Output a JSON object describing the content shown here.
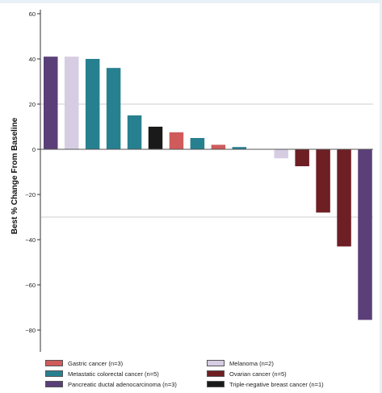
{
  "chart_data": {
    "type": "bar",
    "title": "",
    "xlabel": "",
    "ylabel": "Best % Change From Baseline",
    "ylim": [
      -90,
      63
    ],
    "yticks": [
      60,
      40,
      20,
      0,
      -20,
      -40,
      -60,
      -80
    ],
    "ytick_labels": [
      "60",
      "40",
      "20",
      "0",
      "−20",
      "−40",
      "−60",
      "−80"
    ],
    "reference_lines": [
      20,
      -30
    ],
    "grid": false,
    "legend_position": "bottom",
    "categories_legend": [
      {
        "name": "Gastric cancer (n=3)",
        "color": "#cf5b5b"
      },
      {
        "name": "Melanoma (n=2)",
        "color": "#d6cde3"
      },
      {
        "name": "Metastatic colorectal cancer (n=5)",
        "color": "#27808f"
      },
      {
        "name": "Ovarian cancer (n=5)",
        "color": "#6e1f24"
      },
      {
        "name": "Pancreatic ductal adenocarcinoma (n=3)",
        "color": "#5a3f78"
      },
      {
        "name": "Triple-negative breast cancer (n=1)",
        "color": "#1a1a1a"
      }
    ],
    "bars": [
      {
        "category": "Pancreatic ductal adenocarcinoma (n=3)",
        "value": 41
      },
      {
        "category": "Melanoma (n=2)",
        "value": 41
      },
      {
        "category": "Metastatic colorectal cancer (n=5)",
        "value": 40
      },
      {
        "category": "Metastatic colorectal cancer (n=5)",
        "value": 36
      },
      {
        "category": "Metastatic colorectal cancer (n=5)",
        "value": 15
      },
      {
        "category": "Triple-negative breast cancer (n=1)",
        "value": 10
      },
      {
        "category": "Gastric cancer (n=3)",
        "value": 7.5
      },
      {
        "category": "Metastatic colorectal cancer (n=5)",
        "value": 5
      },
      {
        "category": "Gastric cancer (n=3)",
        "value": 2
      },
      {
        "category": "Metastatic colorectal cancer (n=5)",
        "value": 1
      },
      {
        "category": "Gastric cancer (n=3)",
        "value": 0
      },
      {
        "category": "Melanoma (n=2)",
        "value": -4
      },
      {
        "category": "Ovarian cancer (n=5)",
        "value": -7.5
      },
      {
        "category": "Ovarian cancer (n=5)",
        "value": -28
      },
      {
        "category": "Ovarian cancer (n=5)",
        "value": -43
      },
      {
        "category": "Pancreatic ductal adenocarcinoma (n=3)",
        "value": -75.5
      }
    ]
  }
}
